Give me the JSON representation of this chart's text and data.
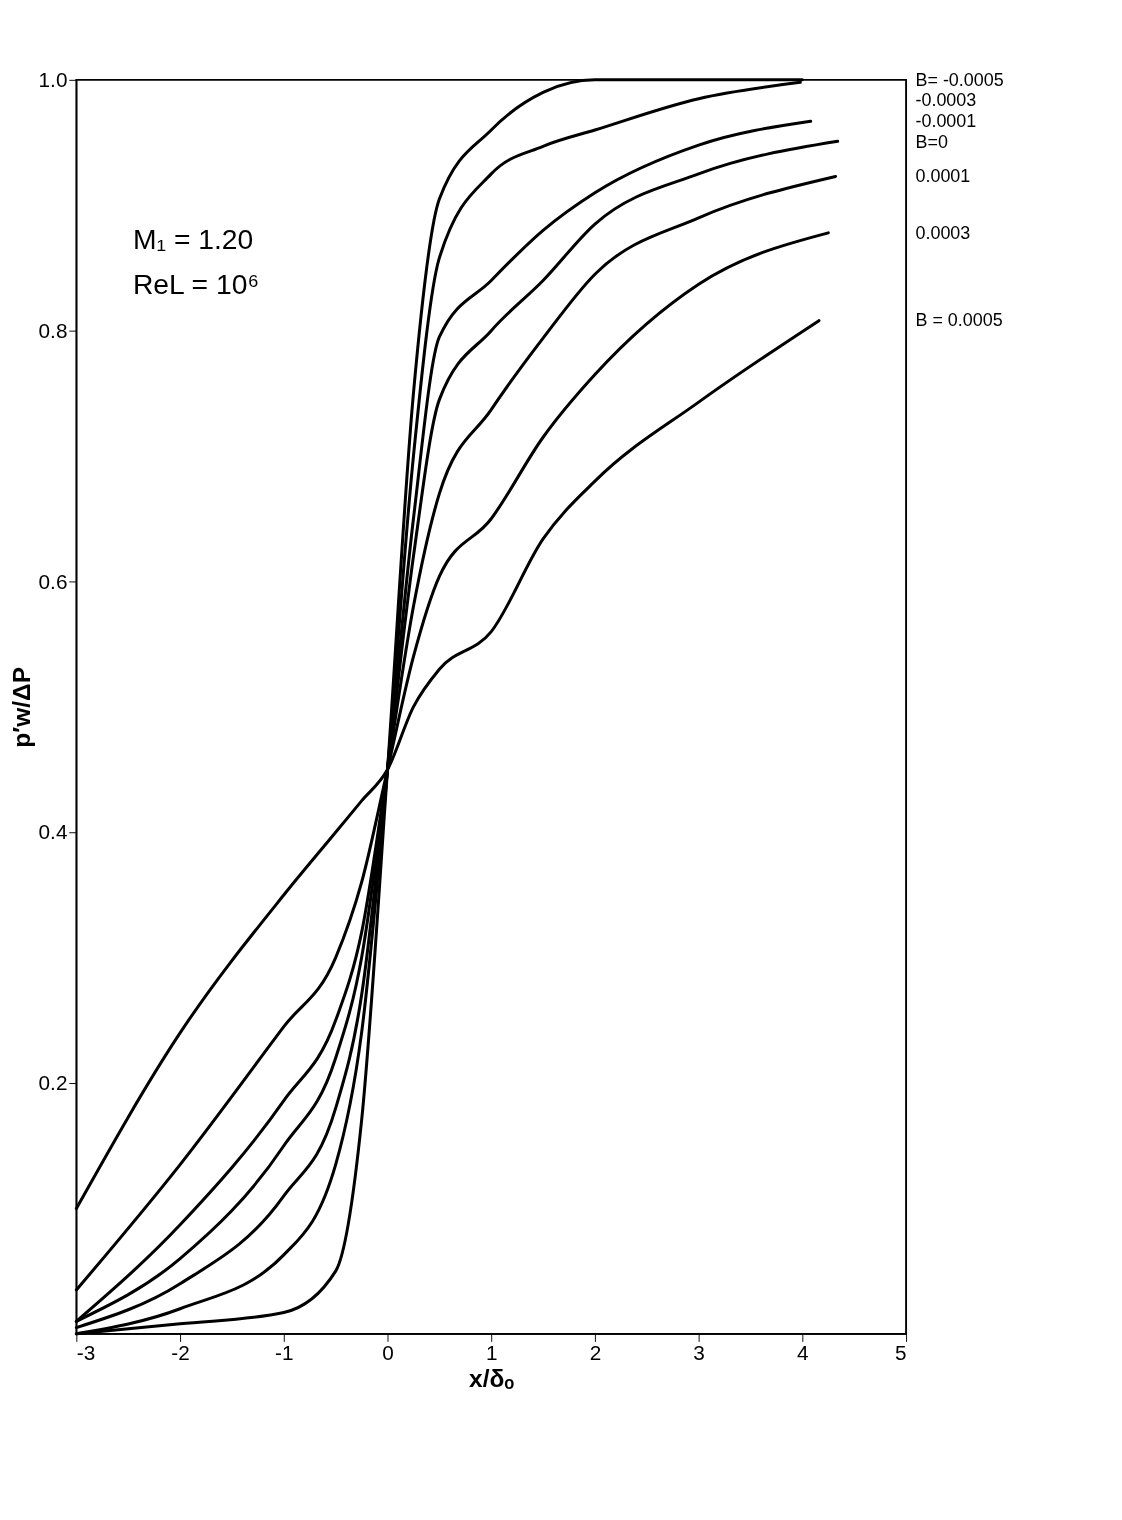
{
  "chart_data": {
    "type": "line",
    "xlabel": "x/δₒ",
    "ylabel": "p′w/ΔP",
    "xlim": [
      -3,
      5
    ],
    "xticks": [
      -3,
      -2,
      -1,
      0,
      1,
      2,
      3,
      4,
      5
    ],
    "ylim": [
      0,
      1
    ],
    "yticks": [
      {
        "value": 0.2,
        "label": "0.2"
      },
      {
        "value": 0.4,
        "label": "0.4"
      },
      {
        "value": 0.6,
        "label": "0.6"
      },
      {
        "value": 0.8,
        "label": "0.8"
      },
      {
        "value": 1,
        "label": "1.0"
      }
    ],
    "grid": false,
    "legend": false,
    "marker": "none",
    "line_style": "solid",
    "annotations": [
      "M₁ = 1.20",
      "ReL = 10⁶"
    ],
    "series": [
      {
        "name": "B= -0.0005",
        "color": "#000000",
        "x": [
          -3,
          -2,
          -1,
          -0.5,
          -0.25,
          0,
          0.25,
          0.5,
          1,
          1.5,
          2,
          3,
          4
        ],
        "values": [
          0,
          0.008,
          0.017,
          0.05,
          0.17,
          0.45,
          0.75,
          0.905,
          0.96,
          0.99,
          1,
          1,
          1
        ]
      },
      {
        "name": "-0.0003",
        "color": "#000000",
        "x": [
          -3,
          -2,
          -1,
          -0.5,
          -0.25,
          0,
          0.25,
          0.5,
          1,
          1.5,
          2,
          3,
          3.98
        ],
        "values": [
          0,
          0.02,
          0.063,
          0.135,
          0.24,
          0.45,
          0.7,
          0.858,
          0.925,
          0.947,
          0.96,
          0.985,
          0.998
        ]
      },
      {
        "name": "-0.0001",
        "color": "#000000",
        "x": [
          -3,
          -2,
          -1,
          -0.5,
          -0.25,
          0,
          0.25,
          0.5,
          1,
          1.5,
          2,
          3,
          4.08
        ],
        "values": [
          0.005,
          0.04,
          0.11,
          0.18,
          0.27,
          0.45,
          0.65,
          0.795,
          0.84,
          0.88,
          0.91,
          0.948,
          0.967
        ]
      },
      {
        "name": "B=0",
        "color": "#000000",
        "x": [
          -3,
          -2,
          -1,
          -0.5,
          -0.25,
          0,
          0.25,
          0.5,
          1,
          1.5,
          2,
          3,
          4.34
        ],
        "values": [
          0.01,
          0.06,
          0.15,
          0.22,
          0.3,
          0.45,
          0.62,
          0.745,
          0.8,
          0.84,
          0.885,
          0.925,
          0.951
        ]
      },
      {
        "name": "0.0001",
        "color": "#000000",
        "x": [
          -3,
          -2,
          -1,
          -0.5,
          -0.25,
          0,
          0.25,
          0.5,
          1,
          1.5,
          2,
          3,
          4.32
        ],
        "values": [
          0.01,
          0.087,
          0.186,
          0.25,
          0.32,
          0.45,
          0.58,
          0.67,
          0.737,
          0.794,
          0.845,
          0.89,
          0.923
        ]
      },
      {
        "name": "0.0003",
        "color": "#000000",
        "x": [
          -3,
          -2,
          -1,
          -0.5,
          -0.25,
          0,
          0.25,
          0.5,
          1,
          1.5,
          2,
          3,
          4.25
        ],
        "values": [
          0.035,
          0.135,
          0.245,
          0.3,
          0.36,
          0.45,
          0.54,
          0.604,
          0.65,
          0.715,
          0.765,
          0.837,
          0.878
        ]
      },
      {
        "name": "B = 0.0005",
        "color": "#000000",
        "x": [
          -3,
          -2,
          -1,
          -0.5,
          -0.25,
          0,
          0.25,
          0.5,
          1,
          1.5,
          2,
          3,
          4.16
        ],
        "values": [
          0.1,
          0.24,
          0.35,
          0.4,
          0.425,
          0.45,
          0.5,
          0.53,
          0.56,
          0.634,
          0.68,
          0.743,
          0.808
        ]
      }
    ]
  }
}
